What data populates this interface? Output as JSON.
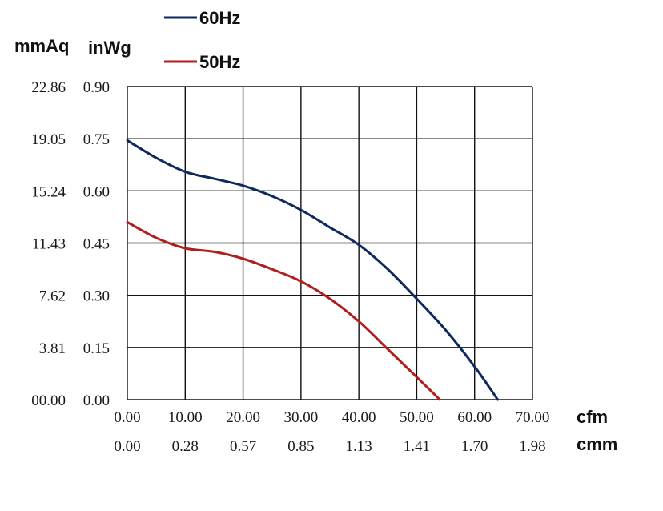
{
  "chart_data": {
    "type": "line",
    "title": "",
    "x_units": {
      "primary": "cfm",
      "secondary": "cmm"
    },
    "y_units": {
      "primary": "inWg",
      "secondary": "mmAq"
    },
    "x_ticks": [
      "0.00",
      "10.00",
      "20.00",
      "30.00",
      "40.00",
      "50.00",
      "60.00",
      "70.00"
    ],
    "x2_ticks": [
      "0.00",
      "0.28",
      "0.57",
      "0.85",
      "1.13",
      "1.41",
      "1.70",
      "1.98"
    ],
    "y_ticks": [
      "0.00",
      "0.15",
      "0.30",
      "0.45",
      "0.60",
      "0.75",
      "0.90"
    ],
    "y2_ticks": [
      "00.00",
      "3.81",
      "7.62",
      "11.43",
      "15.24",
      "19.05",
      "22.86"
    ],
    "xlim": [
      0,
      70
    ],
    "ylim": [
      0,
      0.9
    ],
    "grid": true,
    "legend_position": "top-left",
    "series": [
      {
        "name": "60Hz",
        "color": "#0e2a5c",
        "x": [
          0,
          5,
          10,
          15,
          20,
          25,
          30,
          35,
          40,
          45,
          50,
          55,
          60,
          64
        ],
        "y": [
          0.745,
          0.695,
          0.655,
          0.635,
          0.615,
          0.585,
          0.545,
          0.495,
          0.445,
          0.375,
          0.29,
          0.2,
          0.095,
          0
        ]
      },
      {
        "name": "50Hz",
        "color": "#b01e1e",
        "x": [
          0,
          5,
          10,
          15,
          20,
          25,
          30,
          35,
          40,
          45,
          50,
          54
        ],
        "y": [
          0.51,
          0.465,
          0.435,
          0.425,
          0.405,
          0.375,
          0.34,
          0.29,
          0.225,
          0.145,
          0.065,
          0
        ]
      }
    ]
  }
}
